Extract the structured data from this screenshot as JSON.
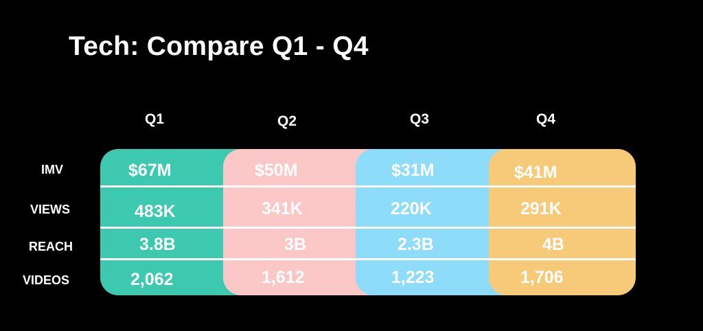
{
  "title": "Tech: Compare Q1 - Q4",
  "colors": {
    "background": "#000000",
    "q1": "#3cc9b0",
    "q2": "#fbc7c7",
    "q3": "#8ddcf9",
    "q4": "#f6ca78"
  },
  "quarters": [
    "Q1",
    "Q2",
    "Q3",
    "Q4"
  ],
  "metrics": [
    "IMV",
    "VIEWS",
    "REACH",
    "VIDEOS"
  ],
  "values": {
    "q1": {
      "imv": "$67M",
      "views": "483K",
      "reach": "3.8B",
      "videos": "2,062"
    },
    "q2": {
      "imv": "$50M",
      "views": "341K",
      "reach": "3B",
      "videos": "1,612"
    },
    "q3": {
      "imv": "$31M",
      "views": "220K",
      "reach": "2.3B",
      "videos": "1,223"
    },
    "q4": {
      "imv": "$41M",
      "views": "291K",
      "reach": "4B",
      "videos": "1,706"
    }
  }
}
